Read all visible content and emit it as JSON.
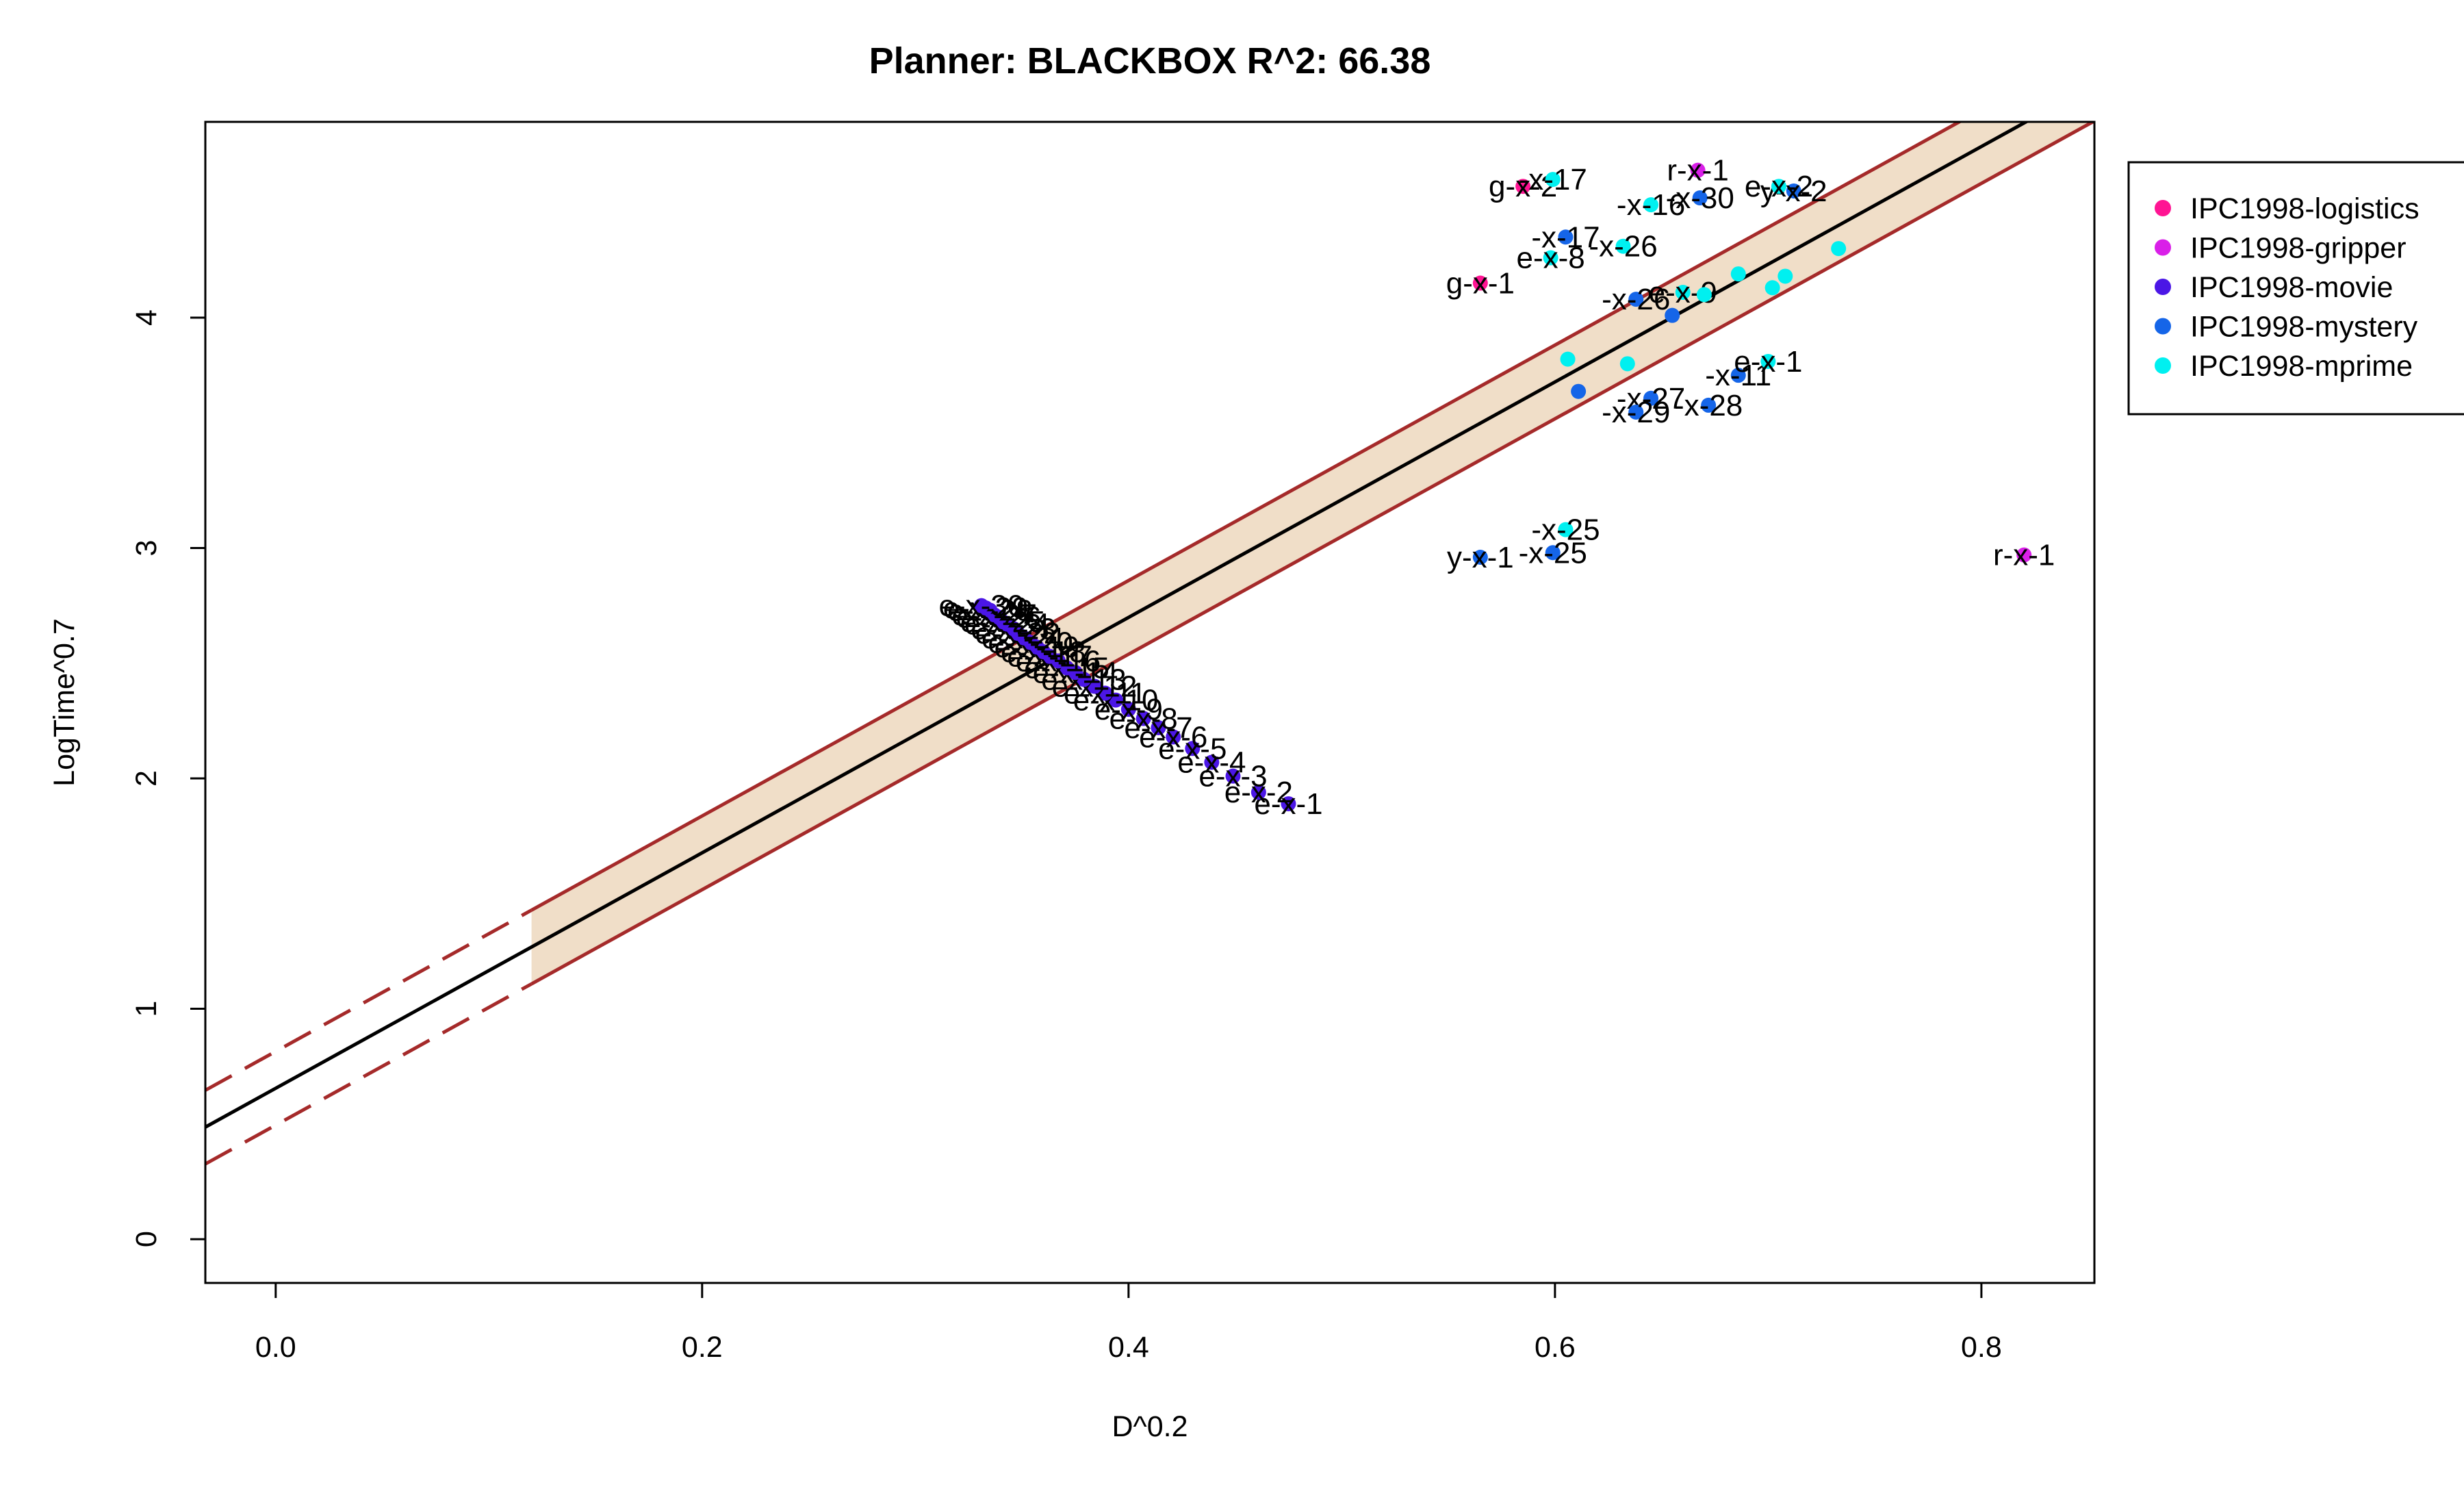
{
  "chart_data": {
    "type": "scatter",
    "title": "Planner: BLACKBOX R^2: 66.38",
    "xlabel": "D^0.2",
    "ylabel": "LogTime^0.7",
    "xlim": [
      -0.033,
      0.853
    ],
    "ylim": [
      -0.19,
      4.85
    ],
    "xticks": [
      0.0,
      0.2,
      0.4,
      0.6,
      0.8
    ],
    "yticks": [
      0,
      1,
      2,
      3,
      4
    ],
    "grid": false,
    "legend_position": "right-outside-top",
    "colors": {
      "regression_line": "#000000",
      "interval_lines": "#a52a2a",
      "band_fill": "#f0dec8"
    },
    "regression": {
      "intercept": 0.655,
      "slope": 5.11,
      "band_halfwidth": 0.16,
      "band_x_range": [
        0.12,
        0.853
      ]
    },
    "series": [
      {
        "name": "IPC1998-logistics",
        "color": "#ff1493",
        "points": [
          {
            "x": 0.585,
            "y": 4.57,
            "label": "g-x-2"
          },
          {
            "x": 0.565,
            "y": 4.15,
            "label": "g-x-1"
          }
        ]
      },
      {
        "name": "IPC1998-gripper",
        "color": "#d91fe8",
        "points": [
          {
            "x": 0.667,
            "y": 4.64,
            "label": "r-x-1"
          },
          {
            "x": 0.82,
            "y": 2.97,
            "label": "r-x-1"
          }
        ]
      },
      {
        "name": "IPC1998-movie",
        "color": "#4b16e6",
        "points": [
          {
            "x": 0.475,
            "y": 1.89,
            "label": "e-x-1"
          },
          {
            "x": 0.461,
            "y": 1.94,
            "label": "e-x-2"
          },
          {
            "x": 0.449,
            "y": 2.01,
            "label": "e-x-3"
          },
          {
            "x": 0.439,
            "y": 2.07,
            "label": "e-x-4"
          },
          {
            "x": 0.43,
            "y": 2.13,
            "label": "e-x-5"
          },
          {
            "x": 0.421,
            "y": 2.18,
            "label": "e-x-6"
          },
          {
            "x": 0.414,
            "y": 2.22,
            "label": "e-x-7"
          },
          {
            "x": 0.407,
            "y": 2.26,
            "label": "e-x-8"
          },
          {
            "x": 0.4,
            "y": 2.3,
            "label": "e-x-9"
          },
          {
            "x": 0.394,
            "y": 2.34,
            "label": "e-x-10"
          },
          {
            "x": 0.389,
            "y": 2.37,
            "label": "e-x-11"
          },
          {
            "x": 0.384,
            "y": 2.4,
            "label": "e-x-12"
          },
          {
            "x": 0.379,
            "y": 2.43,
            "label": "e-x-13"
          },
          {
            "x": 0.375,
            "y": 2.46,
            "label": "e-x-14"
          },
          {
            "x": 0.371,
            "y": 2.48,
            "label": "e-x-15"
          },
          {
            "x": 0.367,
            "y": 2.51,
            "label": "e-x-16"
          },
          {
            "x": 0.363,
            "y": 2.53,
            "label": "e-x-17"
          },
          {
            "x": 0.36,
            "y": 2.55,
            "label": "e-x-18"
          },
          {
            "x": 0.357,
            "y": 2.57,
            "label": "e-x-19"
          },
          {
            "x": 0.354,
            "y": 2.59,
            "label": "e-x-20"
          },
          {
            "x": 0.351,
            "y": 2.61,
            "label": "e-x-21"
          },
          {
            "x": 0.348,
            "y": 2.63,
            "label": "e-x-22"
          },
          {
            "x": 0.346,
            "y": 2.65,
            "label": "e-x-23"
          },
          {
            "x": 0.343,
            "y": 2.67,
            "label": "e-x-24"
          },
          {
            "x": 0.341,
            "y": 2.68,
            "label": "e-x-25"
          },
          {
            "x": 0.339,
            "y": 2.7,
            "label": "e-x-26"
          },
          {
            "x": 0.337,
            "y": 2.71,
            "label": "e-x-27"
          },
          {
            "x": 0.335,
            "y": 2.73,
            "label": "e-x-28"
          },
          {
            "x": 0.333,
            "y": 2.74,
            "label": "e-x-29"
          },
          {
            "x": 0.331,
            "y": 2.75,
            "label": "e-x-30"
          }
        ]
      },
      {
        "name": "IPC1998-mystery",
        "color": "#1565e8",
        "points": [
          {
            "x": 0.668,
            "y": 4.52,
            "label": "-x-30"
          },
          {
            "x": 0.712,
            "y": 4.55,
            "label": "y-x-2"
          },
          {
            "x": 0.605,
            "y": 4.35,
            "label": "-x-17"
          },
          {
            "x": 0.638,
            "y": 4.08,
            "label": "-x-26"
          },
          {
            "x": 0.655,
            "y": 4.01,
            "label": ""
          },
          {
            "x": 0.611,
            "y": 3.68,
            "label": ""
          },
          {
            "x": 0.645,
            "y": 3.65,
            "label": "-x-27"
          },
          {
            "x": 0.638,
            "y": 3.59,
            "label": "-x-29"
          },
          {
            "x": 0.672,
            "y": 3.62,
            "label": "-x-28"
          },
          {
            "x": 0.686,
            "y": 3.75,
            "label": "-x-11"
          },
          {
            "x": 0.565,
            "y": 2.96,
            "label": "y-x-1"
          },
          {
            "x": 0.599,
            "y": 2.98,
            "label": "-x-25"
          }
        ]
      },
      {
        "name": "IPC1998-mprime",
        "color": "#00f0f0",
        "points": [
          {
            "x": 0.599,
            "y": 4.6,
            "label": "-x-17"
          },
          {
            "x": 0.645,
            "y": 4.49,
            "label": "-x-16"
          },
          {
            "x": 0.705,
            "y": 4.57,
            "label": "e-x-2"
          },
          {
            "x": 0.598,
            "y": 4.26,
            "label": "e-x-8"
          },
          {
            "x": 0.632,
            "y": 4.31,
            "label": "-x-26"
          },
          {
            "x": 0.66,
            "y": 4.11,
            "label": "e-x-9"
          },
          {
            "x": 0.67,
            "y": 4.1,
            "label": ""
          },
          {
            "x": 0.686,
            "y": 4.19,
            "label": ""
          },
          {
            "x": 0.702,
            "y": 4.13,
            "label": ""
          },
          {
            "x": 0.708,
            "y": 4.18,
            "label": ""
          },
          {
            "x": 0.733,
            "y": 4.3,
            "label": ""
          },
          {
            "x": 0.606,
            "y": 3.82,
            "label": ""
          },
          {
            "x": 0.634,
            "y": 3.8,
            "label": ""
          },
          {
            "x": 0.7,
            "y": 3.81,
            "label": "e-x-1"
          },
          {
            "x": 0.605,
            "y": 3.08,
            "label": "-x-25"
          }
        ]
      }
    ]
  }
}
